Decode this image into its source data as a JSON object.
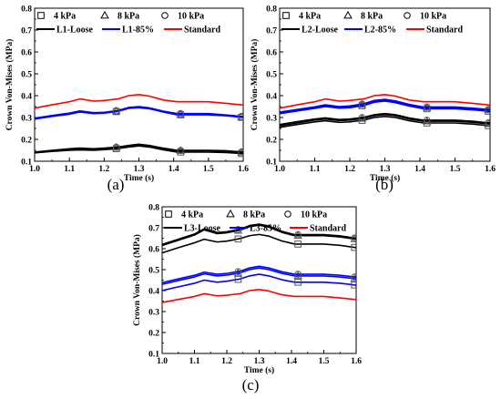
{
  "chart_data": [
    {
      "type": "line",
      "panel_label": "(a)",
      "xlabel": "Time (s)",
      "ylabel": "Crown Von-Mises (MPa)",
      "xlim": [
        1.0,
        1.6
      ],
      "ylim": [
        0.1,
        0.8
      ],
      "xticks": [
        "1.0",
        "1.1",
        "1.2",
        "1.3",
        "1.4",
        "1.5",
        "1.6"
      ],
      "yticks": [
        "0.1",
        "0.2",
        "0.3",
        "0.4",
        "0.5",
        "0.6",
        "0.7",
        "0.8"
      ],
      "grid": false,
      "legend": [
        "4 kPa",
        "8 kPa",
        "10 kPa",
        "L1-Loose",
        "L1-85%",
        "Standard"
      ],
      "legend_position": "top",
      "x": [
        1.0,
        1.05,
        1.1,
        1.13,
        1.17,
        1.2,
        1.24,
        1.27,
        1.3,
        1.33,
        1.37,
        1.41,
        1.45,
        1.5,
        1.55,
        1.6
      ],
      "series": [
        {
          "name": "L1-Loose",
          "group": "loose",
          "pressure": "4 kPa",
          "marker": "square",
          "color": "#000000",
          "values": [
            0.138,
            0.145,
            0.15,
            0.152,
            0.15,
            0.153,
            0.158,
            0.165,
            0.17,
            0.165,
            0.152,
            0.142,
            0.142,
            0.142,
            0.14,
            0.135
          ]
        },
        {
          "name": "L1-Loose",
          "group": "loose",
          "pressure": "8 kPa",
          "marker": "triangle",
          "color": "#000000",
          "values": [
            0.14,
            0.148,
            0.155,
            0.158,
            0.155,
            0.158,
            0.163,
            0.17,
            0.175,
            0.17,
            0.158,
            0.148,
            0.148,
            0.148,
            0.146,
            0.14
          ]
        },
        {
          "name": "L1-Loose",
          "group": "loose",
          "pressure": "10 kPa",
          "marker": "circle",
          "color": "#000000",
          "values": [
            0.142,
            0.15,
            0.157,
            0.16,
            0.157,
            0.16,
            0.165,
            0.172,
            0.178,
            0.172,
            0.16,
            0.15,
            0.15,
            0.15,
            0.148,
            0.142
          ]
        },
        {
          "name": "L1-85%",
          "group": "85",
          "pressure": "4 kPa",
          "marker": "square",
          "color": "#0000ff",
          "values": [
            0.293,
            0.305,
            0.315,
            0.325,
            0.318,
            0.32,
            0.328,
            0.342,
            0.345,
            0.34,
            0.325,
            0.312,
            0.312,
            0.312,
            0.308,
            0.3
          ]
        },
        {
          "name": "L1-85%",
          "group": "85",
          "pressure": "8 kPa",
          "marker": "triangle",
          "color": "#0000ff",
          "values": [
            0.295,
            0.307,
            0.318,
            0.328,
            0.32,
            0.322,
            0.33,
            0.344,
            0.348,
            0.342,
            0.327,
            0.315,
            0.315,
            0.315,
            0.31,
            0.302
          ]
        },
        {
          "name": "L1-85%",
          "group": "85",
          "pressure": "10 kPa",
          "marker": "circle",
          "color": "#0000ff",
          "values": [
            0.297,
            0.309,
            0.32,
            0.33,
            0.322,
            0.324,
            0.332,
            0.346,
            0.35,
            0.344,
            0.329,
            0.318,
            0.318,
            0.318,
            0.312,
            0.304
          ]
        },
        {
          "name": "Standard",
          "group": "standard",
          "pressure": "",
          "marker": "none",
          "color": "#ff0000",
          "values": [
            0.343,
            0.358,
            0.372,
            0.385,
            0.375,
            0.378,
            0.385,
            0.4,
            0.405,
            0.398,
            0.38,
            0.372,
            0.372,
            0.372,
            0.365,
            0.357
          ]
        }
      ]
    },
    {
      "type": "line",
      "panel_label": "(b)",
      "xlabel": "Time (s)",
      "ylabel": "Crown Von-Mises (MPa)",
      "xlim": [
        1.0,
        1.6
      ],
      "ylim": [
        0.1,
        0.8
      ],
      "xticks": [
        "1.0",
        "1.1",
        "1.2",
        "1.3",
        "1.4",
        "1.5",
        "1.6"
      ],
      "yticks": [
        "0.1",
        "0.2",
        "0.3",
        "0.4",
        "0.5",
        "0.6",
        "0.7",
        "0.8"
      ],
      "grid": false,
      "legend": [
        "4 kPa",
        "8 kPa",
        "10 kPa",
        "L2-Loose",
        "L2-85%",
        "Standard"
      ],
      "legend_position": "top",
      "x": [
        1.0,
        1.05,
        1.1,
        1.13,
        1.17,
        1.2,
        1.24,
        1.27,
        1.3,
        1.33,
        1.37,
        1.41,
        1.45,
        1.5,
        1.55,
        1.6
      ],
      "series": [
        {
          "name": "L2-Loose",
          "group": "loose",
          "pressure": "4 kPa",
          "marker": "square",
          "color": "#000000",
          "values": [
            0.255,
            0.268,
            0.28,
            0.285,
            0.278,
            0.28,
            0.288,
            0.3,
            0.305,
            0.3,
            0.285,
            0.275,
            0.275,
            0.275,
            0.27,
            0.262
          ]
        },
        {
          "name": "L2-Loose",
          "group": "loose",
          "pressure": "8 kPa",
          "marker": "triangle",
          "color": "#000000",
          "values": [
            0.262,
            0.275,
            0.288,
            0.293,
            0.286,
            0.288,
            0.296,
            0.308,
            0.313,
            0.308,
            0.293,
            0.283,
            0.283,
            0.283,
            0.278,
            0.27
          ]
        },
        {
          "name": "L2-Loose",
          "group": "loose",
          "pressure": "10 kPa",
          "marker": "circle",
          "color": "#000000",
          "values": [
            0.268,
            0.281,
            0.293,
            0.298,
            0.291,
            0.293,
            0.301,
            0.313,
            0.318,
            0.313,
            0.298,
            0.288,
            0.288,
            0.288,
            0.283,
            0.275
          ]
        },
        {
          "name": "L2-85%",
          "group": "85",
          "pressure": "4 kPa",
          "marker": "square",
          "color": "#0000ff",
          "values": [
            0.318,
            0.33,
            0.342,
            0.35,
            0.343,
            0.345,
            0.355,
            0.37,
            0.375,
            0.368,
            0.352,
            0.34,
            0.34,
            0.34,
            0.335,
            0.328
          ]
        },
        {
          "name": "L2-85%",
          "group": "85",
          "pressure": "8 kPa",
          "marker": "triangle",
          "color": "#0000ff",
          "values": [
            0.322,
            0.334,
            0.346,
            0.355,
            0.347,
            0.35,
            0.36,
            0.375,
            0.38,
            0.373,
            0.357,
            0.345,
            0.345,
            0.345,
            0.34,
            0.333
          ]
        },
        {
          "name": "L2-85%",
          "group": "85",
          "pressure": "10 kPa",
          "marker": "circle",
          "color": "#0000ff",
          "values": [
            0.325,
            0.337,
            0.349,
            0.358,
            0.35,
            0.353,
            0.363,
            0.378,
            0.383,
            0.376,
            0.36,
            0.348,
            0.348,
            0.348,
            0.343,
            0.336
          ]
        },
        {
          "name": "Standard",
          "group": "standard",
          "pressure": "",
          "marker": "none",
          "color": "#ff0000",
          "values": [
            0.343,
            0.358,
            0.372,
            0.385,
            0.375,
            0.378,
            0.385,
            0.4,
            0.405,
            0.398,
            0.38,
            0.372,
            0.372,
            0.372,
            0.365,
            0.357
          ]
        }
      ]
    },
    {
      "type": "line",
      "panel_label": "(c)",
      "xlabel": "Time (s)",
      "ylabel": "Crown Von-Mises (MPa)",
      "xlim": [
        1.0,
        1.6
      ],
      "ylim": [
        0.1,
        0.8
      ],
      "xticks": [
        "1.0",
        "1.1",
        "1.2",
        "1.3",
        "1.4",
        "1.5",
        "1.6"
      ],
      "yticks": [
        "0.1",
        "0.2",
        "0.3",
        "0.4",
        "0.5",
        "0.6",
        "0.7",
        "0.8"
      ],
      "grid": false,
      "legend": [
        "4 kPa",
        "8 kPa",
        "10 kPa",
        "L3-Loose",
        "L3-85%",
        "Standard"
      ],
      "legend_position": "top",
      "x": [
        1.0,
        1.05,
        1.1,
        1.13,
        1.17,
        1.2,
        1.24,
        1.27,
        1.3,
        1.33,
        1.37,
        1.41,
        1.45,
        1.5,
        1.55,
        1.6
      ],
      "series": [
        {
          "name": "L3-Loose",
          "group": "loose",
          "pressure": "4 kPa",
          "marker": "square",
          "color": "#000000",
          "values": [
            0.58,
            0.605,
            0.628,
            0.645,
            0.632,
            0.636,
            0.648,
            0.662,
            0.668,
            0.66,
            0.637,
            0.622,
            0.622,
            0.622,
            0.616,
            0.605
          ]
        },
        {
          "name": "L3-Loose",
          "group": "loose",
          "pressure": "8 kPa",
          "marker": "triangle",
          "color": "#000000",
          "values": [
            0.615,
            0.64,
            0.665,
            0.69,
            0.672,
            0.676,
            0.688,
            0.705,
            0.712,
            0.703,
            0.678,
            0.662,
            0.662,
            0.662,
            0.656,
            0.645
          ]
        },
        {
          "name": "L3-Loose",
          "group": "loose",
          "pressure": "10 kPa",
          "marker": "circle",
          "color": "#000000",
          "values": [
            0.62,
            0.645,
            0.67,
            0.695,
            0.677,
            0.681,
            0.693,
            0.71,
            0.717,
            0.708,
            0.683,
            0.667,
            0.667,
            0.667,
            0.661,
            0.65
          ]
        },
        {
          "name": "L3-85%",
          "group": "85",
          "pressure": "4 kPa",
          "marker": "square",
          "color": "#0000ff",
          "values": [
            0.4,
            0.418,
            0.435,
            0.45,
            0.44,
            0.445,
            0.455,
            0.47,
            0.478,
            0.47,
            0.452,
            0.44,
            0.44,
            0.44,
            0.435,
            0.426
          ]
        },
        {
          "name": "L3-85%",
          "group": "85",
          "pressure": "8 kPa",
          "marker": "triangle",
          "color": "#0000ff",
          "values": [
            0.43,
            0.448,
            0.465,
            0.48,
            0.47,
            0.474,
            0.484,
            0.5,
            0.508,
            0.5,
            0.482,
            0.47,
            0.47,
            0.47,
            0.465,
            0.456
          ]
        },
        {
          "name": "L3-85%",
          "group": "85",
          "pressure": "10 kPa",
          "marker": "circle",
          "color": "#0000ff",
          "values": [
            0.438,
            0.456,
            0.473,
            0.488,
            0.478,
            0.482,
            0.492,
            0.508,
            0.516,
            0.508,
            0.49,
            0.478,
            0.478,
            0.478,
            0.473,
            0.464
          ]
        },
        {
          "name": "Standard",
          "group": "standard",
          "pressure": "",
          "marker": "none",
          "color": "#ff0000",
          "values": [
            0.343,
            0.358,
            0.372,
            0.385,
            0.375,
            0.378,
            0.385,
            0.4,
            0.405,
            0.398,
            0.38,
            0.372,
            0.372,
            0.372,
            0.365,
            0.357
          ]
        }
      ]
    }
  ]
}
